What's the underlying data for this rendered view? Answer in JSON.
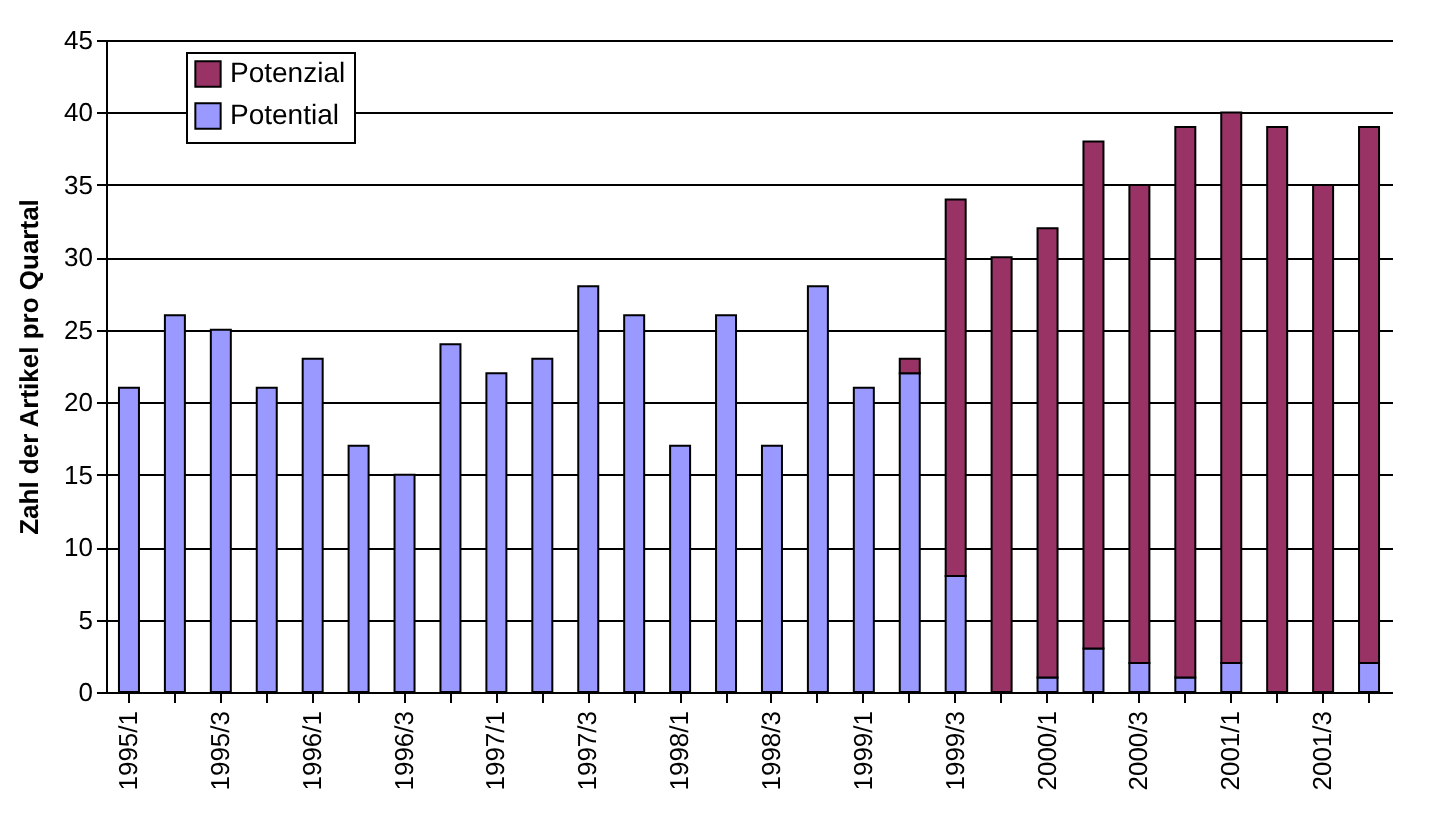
{
  "chart_data": {
    "type": "bar",
    "stacked": true,
    "ylabel": "Zahl der Artikel pro Quartal",
    "categories": [
      "1995/1",
      null,
      "1995/3",
      null,
      "1996/1",
      null,
      "1996/3",
      null,
      "1997/1",
      null,
      "1997/3",
      null,
      "1998/1",
      null,
      "1998/3",
      null,
      "1999/1",
      null,
      "1999/3",
      null,
      "2000/1",
      null,
      "2000/3",
      null,
      "2001/1",
      null,
      "2001/3",
      null
    ],
    "series": [
      {
        "name": "Potential",
        "color": "#9999ff",
        "values": [
          21,
          26,
          25,
          21,
          23,
          17,
          15,
          24,
          22,
          23,
          28,
          26,
          17,
          26,
          17,
          28,
          21,
          22,
          8,
          null,
          1,
          3,
          2,
          1,
          2,
          null,
          null,
          2
        ]
      },
      {
        "name": "Potenzial",
        "color": "#993366",
        "values": [
          null,
          null,
          null,
          null,
          null,
          null,
          null,
          null,
          null,
          null,
          null,
          null,
          null,
          null,
          null,
          null,
          null,
          1,
          26,
          30,
          31,
          35,
          33,
          38,
          38,
          39,
          35,
          37
        ]
      }
    ],
    "ylim": [
      0,
      45
    ],
    "yticks": [
      0,
      5,
      10,
      15,
      20,
      25,
      30,
      35,
      40,
      45
    ],
    "grid": "y",
    "legend": "top left"
  }
}
